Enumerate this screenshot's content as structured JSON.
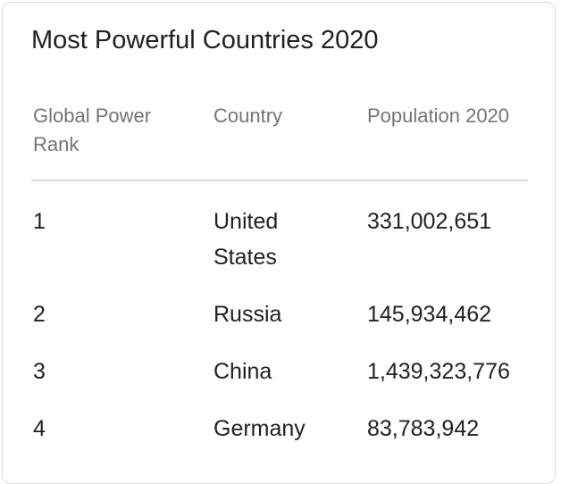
{
  "table": {
    "title": "Most Powerful Countries 2020",
    "headers": {
      "rank": "Global Power Rank",
      "country": "Country",
      "population": "Population 2020"
    },
    "rows": [
      {
        "rank": "1",
        "country": "United States",
        "population": "331,002,651"
      },
      {
        "rank": "2",
        "country": "Russia",
        "population": "145,934,462"
      },
      {
        "rank": "3",
        "country": "China",
        "population": "1,439,323,776"
      },
      {
        "rank": "4",
        "country": "Germany",
        "population": "83,783,942"
      }
    ]
  }
}
